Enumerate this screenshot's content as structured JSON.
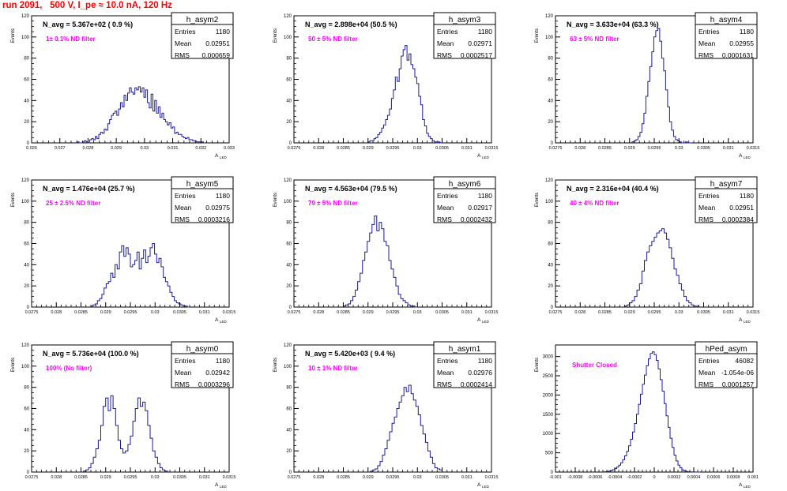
{
  "run_title": "run 2091,   500 V, I_pe ≈ 10.0 nA, 120 Hz",
  "chart_data": [
    {
      "type": "histogram",
      "name": "h_asym2",
      "n_avg": "N_avg = 5.367e+02 ( 0.9 %)",
      "filter": "1± 0.1% ND filter",
      "stats": [
        [
          "Entries",
          "1180"
        ],
        [
          "Mean",
          "0.02951"
        ],
        [
          "RMS",
          "0.000659"
        ]
      ],
      "ylabel": "Events",
      "xlabel": "A",
      "xlabel_sub": "LED",
      "xlim": [
        0.026,
        0.033
      ],
      "ylim": [
        0,
        120
      ],
      "xticks": [
        "0.026",
        "0.027",
        "0.028",
        "0.029",
        "0.03",
        "0.031",
        "0.032",
        "0.033"
      ],
      "xtick_values": [
        0.026,
        0.027,
        0.028,
        0.029,
        0.03,
        0.031,
        0.032,
        0.033
      ],
      "yticks": [
        0,
        20,
        40,
        60,
        80,
        100,
        120
      ],
      "bin_edges": [
        0.02755,
        0.03215
      ],
      "counts": [
        0,
        1,
        0,
        0,
        1,
        2,
        1,
        0,
        3,
        4,
        3,
        6,
        4,
        8,
        10,
        9,
        13,
        12,
        18,
        22,
        26,
        28,
        30,
        26,
        32,
        38,
        34,
        45,
        40,
        47,
        52,
        48,
        46,
        52,
        50,
        53,
        48,
        52,
        43,
        50,
        38,
        33,
        46,
        30,
        40,
        28,
        34,
        24,
        28,
        22,
        20,
        17,
        19,
        14,
        15,
        9,
        10,
        8,
        8,
        6,
        5,
        4,
        5,
        3,
        3,
        2,
        2,
        1,
        1,
        1,
        1,
        0
      ]
    },
    {
      "type": "histogram",
      "name": "h_asym3",
      "n_avg": "N_avg = 2.898e+04 (50.5 %)",
      "filter": "50 ± 5% ND filter",
      "stats": [
        [
          "Entries",
          "1180"
        ],
        [
          "Mean",
          "0.02971"
        ],
        [
          "RMS",
          "0.0002517"
        ]
      ],
      "ylabel": "Events",
      "xlabel": "A",
      "xlabel_sub": "LED",
      "xlim": [
        0.0275,
        0.0315
      ],
      "ylim": [
        0,
        120
      ],
      "xticks": [
        "0.0275",
        "0.028",
        "0.0285",
        "0.029",
        "0.0295",
        "0.03",
        "0.0305",
        "0.031",
        "0.0315"
      ],
      "xtick_values": [
        0.0275,
        0.028,
        0.0285,
        0.029,
        0.0295,
        0.03,
        0.0305,
        0.031,
        0.0315
      ],
      "yticks": [
        0,
        20,
        40,
        60,
        80,
        100,
        120
      ],
      "bin_edges": [
        0.029,
        0.0305
      ],
      "counts": [
        1,
        2,
        2,
        4,
        5,
        8,
        10,
        14,
        17,
        22,
        26,
        32,
        42,
        50,
        62,
        58,
        70,
        82,
        88,
        92,
        78,
        84,
        74,
        70,
        62,
        56,
        44,
        36,
        22,
        16,
        9,
        6,
        4,
        2,
        1,
        0,
        1,
        0
      ]
    },
    {
      "type": "histogram",
      "name": "h_asym4",
      "n_avg": "N_avg = 3.633e+04 (63.3 %)",
      "filter": "63 ± 5% ND filter",
      "stats": [
        [
          "Entries",
          "1180"
        ],
        [
          "Mean",
          "0.02955"
        ],
        [
          "RMS",
          "0.0001631"
        ]
      ],
      "ylabel": "Events",
      "xlabel": "A",
      "xlabel_sub": "LED",
      "xlim": [
        0.0275,
        0.0315
      ],
      "ylim": [
        0,
        120
      ],
      "xticks": [
        "0.0275",
        "0.028",
        "0.0285",
        "0.029",
        "0.0295",
        "0.03",
        "0.0305",
        "0.031",
        "0.0315"
      ],
      "xtick_values": [
        0.0275,
        0.028,
        0.0285,
        0.029,
        0.0295,
        0.03,
        0.0305,
        0.031,
        0.0315
      ],
      "yticks": [
        0,
        20,
        40,
        60,
        80,
        100,
        120
      ],
      "bin_edges": [
        0.02905,
        0.03025
      ],
      "counts": [
        1,
        2,
        3,
        6,
        10,
        18,
        28,
        44,
        58,
        72,
        86,
        100,
        106,
        108,
        96,
        80,
        68,
        50,
        34,
        20,
        12,
        6,
        3,
        2,
        1,
        0,
        0,
        1,
        0,
        0
      ]
    },
    {
      "type": "histogram",
      "name": "h_asym5",
      "n_avg": "N_avg = 1.476e+04 (25.7 %)",
      "filter": "25 ± 2.5% ND filter",
      "stats": [
        [
          "Entries",
          "1180"
        ],
        [
          "Mean",
          "0.02975"
        ],
        [
          "RMS",
          "0.0003216"
        ]
      ],
      "ylabel": "Events",
      "xlabel": "A",
      "xlabel_sub": "LED",
      "xlim": [
        0.0275,
        0.0315
      ],
      "ylim": [
        0,
        120
      ],
      "xticks": [
        "0.0275",
        "0.028",
        "0.0285",
        "0.029",
        "0.0295",
        "0.03",
        "0.0305",
        "0.031",
        "0.0315"
      ],
      "xtick_values": [
        0.0275,
        0.028,
        0.0285,
        0.029,
        0.0295,
        0.03,
        0.0305,
        0.031,
        0.0315
      ],
      "yticks": [
        0,
        20,
        40,
        60,
        80,
        100,
        120
      ],
      "bin_edges": [
        0.0287,
        0.0307
      ],
      "counts": [
        1,
        2,
        3,
        6,
        8,
        12,
        18,
        22,
        24,
        32,
        28,
        40,
        36,
        52,
        58,
        48,
        56,
        50,
        38,
        40,
        44,
        52,
        36,
        46,
        54,
        42,
        48,
        56,
        60,
        50,
        42,
        46,
        38,
        28,
        24,
        20,
        14,
        10,
        6,
        4,
        3,
        2,
        1,
        1,
        0
      ]
    },
    {
      "type": "histogram",
      "name": "h_asym6",
      "n_avg": "N_avg = 4.563e+04 (79.5 %)",
      "filter": "79 ± 5% ND filter",
      "stats": [
        [
          "Entries",
          "1180"
        ],
        [
          "Mean",
          "0.02917"
        ],
        [
          "RMS",
          "0.0002432"
        ]
      ],
      "ylabel": "Events",
      "xlabel": "A",
      "xlabel_sub": "LED",
      "xlim": [
        0.0275,
        0.0315
      ],
      "ylim": [
        0,
        120
      ],
      "xticks": [
        "0.0275",
        "0.028",
        "0.0285",
        "0.029",
        "0.0295",
        "0.03",
        "0.0305",
        "0.031",
        "0.0315"
      ],
      "xtick_values": [
        0.0275,
        0.028,
        0.0285,
        0.029,
        0.0295,
        0.03,
        0.0305,
        0.031,
        0.0315
      ],
      "yticks": [
        0,
        20,
        40,
        60,
        80,
        100,
        120
      ],
      "bin_edges": [
        0.0285,
        0.03
      ],
      "counts": [
        1,
        2,
        3,
        6,
        10,
        16,
        24,
        32,
        44,
        52,
        62,
        70,
        78,
        86,
        72,
        80,
        74,
        62,
        58,
        44,
        36,
        28,
        20,
        12,
        8,
        6,
        4,
        2,
        1,
        1,
        0
      ]
    },
    {
      "type": "histogram",
      "name": "h_asym7",
      "n_avg": "N_avg = 2.316e+04 (40.4 %)",
      "filter": "40 ± 4% ND filter",
      "stats": [
        [
          "Entries",
          "1180"
        ],
        [
          "Mean",
          "0.02951"
        ],
        [
          "RMS",
          "0.0002384"
        ]
      ],
      "ylabel": "Events",
      "xlabel": "A",
      "xlabel_sub": "LED",
      "xlim": [
        0.0275,
        0.0315
      ],
      "ylim": [
        0,
        120
      ],
      "xticks": [
        "0.0275",
        "0.028",
        "0.0285",
        "0.029",
        "0.0295",
        "0.03",
        "0.0305",
        "0.031",
        "0.0315"
      ],
      "xtick_values": [
        0.0275,
        0.028,
        0.0285,
        0.029,
        0.0295,
        0.03,
        0.0305,
        0.031,
        0.0315
      ],
      "yticks": [
        0,
        20,
        40,
        60,
        80,
        100,
        120
      ],
      "bin_edges": [
        0.0289,
        0.0304
      ],
      "counts": [
        1,
        2,
        4,
        6,
        10,
        16,
        22,
        34,
        44,
        52,
        58,
        62,
        66,
        70,
        72,
        74,
        70,
        64,
        56,
        46,
        36,
        30,
        22,
        16,
        10,
        6,
        4,
        2,
        1,
        1
      ]
    },
    {
      "type": "histogram",
      "name": "h_asym0",
      "n_avg": "N_avg = 5.736e+04 (100.0 %)",
      "filter": "100% (No filter)",
      "stats": [
        [
          "Entries",
          "1180"
        ],
        [
          "Mean",
          "0.02942"
        ],
        [
          "RMS",
          "0.0003296"
        ]
      ],
      "ylabel": "Events",
      "xlabel": "A",
      "xlabel_sub": "LED",
      "xlim": [
        0.0275,
        0.0315
      ],
      "ylim": [
        0,
        120
      ],
      "xticks": [
        "0.0275",
        "0.028",
        "0.0285",
        "0.029",
        "0.0295",
        "0.03",
        "0.0305",
        "0.031",
        "0.0315"
      ],
      "xtick_values": [
        0.0275,
        0.028,
        0.0285,
        0.029,
        0.0295,
        0.03,
        0.0305,
        0.031,
        0.0315
      ],
      "yticks": [
        0,
        20,
        40,
        60,
        80,
        100,
        120
      ],
      "bin_edges": [
        0.02855,
        0.03025
      ],
      "counts": [
        1,
        2,
        4,
        8,
        14,
        22,
        30,
        44,
        62,
        70,
        58,
        72,
        60,
        44,
        30,
        22,
        18,
        20,
        26,
        34,
        48,
        60,
        70,
        62,
        66,
        58,
        44,
        32,
        20,
        14,
        8,
        4,
        2,
        1
      ]
    },
    {
      "type": "histogram",
      "name": "h_asym1",
      "n_avg": "N_avg = 5.420e+03 ( 9.4 %)",
      "filter": "10 ± 1% ND filter",
      "stats": [
        [
          "Entries",
          "1180"
        ],
        [
          "Mean",
          "0.02976"
        ],
        [
          "RMS",
          "0.0002414"
        ]
      ],
      "ylabel": "Events",
      "xlabel": "A",
      "xlabel_sub": "LED",
      "xlim": [
        0.0275,
        0.0315
      ],
      "ylim": [
        0,
        120
      ],
      "xticks": [
        "0.0275",
        "0.028",
        "0.0285",
        "0.029",
        "0.0295",
        "0.03",
        "0.0305",
        "0.031",
        "0.0315"
      ],
      "xtick_values": [
        0.0275,
        0.028,
        0.0285,
        0.029,
        0.0295,
        0.03,
        0.0305,
        0.031,
        0.0315
      ],
      "yticks": [
        0,
        20,
        40,
        60,
        80,
        100,
        120
      ],
      "bin_edges": [
        0.02905,
        0.0305
      ],
      "counts": [
        1,
        2,
        3,
        6,
        10,
        16,
        22,
        30,
        38,
        46,
        52,
        60,
        66,
        72,
        80,
        76,
        82,
        74,
        68,
        62,
        54,
        44,
        36,
        28,
        20,
        14,
        8,
        4,
        3,
        2
      ]
    },
    {
      "type": "histogram",
      "name": "hPed_asym",
      "n_avg": "",
      "filter": "Shutter Closed",
      "stats": [
        [
          "Entries",
          "46082"
        ],
        [
          "Mean",
          "-1.054e-06"
        ],
        [
          "RMS",
          "0.0001257"
        ]
      ],
      "ylabel": "Events",
      "xlabel": "A",
      "xlabel_sub": "LED",
      "xlim": [
        -0.001,
        0.001
      ],
      "ylim": [
        0,
        3300
      ],
      "xticks": [
        "-0.001",
        "-0.0008",
        "-0.0006",
        "-0.0004",
        "-0.0002",
        "0",
        "0.0002",
        "0.0004",
        "0.0006",
        "0.0008",
        "0.001"
      ],
      "xtick_values": [
        -0.001,
        -0.0008,
        -0.0006,
        -0.0004,
        -0.0002,
        0,
        0.0002,
        0.0004,
        0.0006,
        0.0008,
        0.001
      ],
      "yticks": [
        0,
        500,
        1000,
        1500,
        2000,
        2500,
        3000
      ],
      "bin_edges": [
        -0.00052,
        0.00046
      ],
      "counts": [
        5,
        8,
        15,
        25,
        40,
        60,
        90,
        130,
        180,
        240,
        320,
        420,
        540,
        680,
        850,
        1040,
        1260,
        1500,
        1760,
        2020,
        2280,
        2520,
        2760,
        2940,
        3080,
        3120,
        3050,
        2900,
        2680,
        2400,
        2100,
        1780,
        1460,
        1160,
        880,
        640,
        440,
        290,
        180,
        110,
        60,
        30,
        15,
        8,
        5,
        3,
        2,
        1,
        1
      ]
    }
  ]
}
